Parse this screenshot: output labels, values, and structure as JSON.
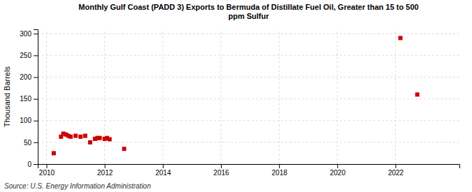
{
  "chart_data": {
    "type": "scatter",
    "title": "Monthly Gulf Coast (PADD 3) Exports to Bermuda of Distillate Fuel Oil, Greater than 15 to 500\nppm Sulfur",
    "ylabel": "Thousand Barrels",
    "annotations": [
      "Source: U.S. Energy Information Administration"
    ],
    "x": [
      2010.25,
      2010.5,
      2010.58,
      2010.67,
      2010.75,
      2010.83,
      2011.0,
      2011.17,
      2011.33,
      2011.5,
      2011.67,
      2011.75,
      2011.83,
      2012.0,
      2012.08,
      2012.17,
      2012.67,
      2022.17,
      2022.75
    ],
    "values": [
      25,
      63,
      70,
      68,
      65,
      63,
      65,
      63,
      65,
      50,
      58,
      60,
      60,
      58,
      60,
      57,
      35,
      290,
      160
    ],
    "color": "#cc0000",
    "marker": "square",
    "xlim": [
      2009.7,
      2024.2
    ],
    "xticks": [
      2010,
      2012,
      2014,
      2016,
      2018,
      2020,
      2022
    ],
    "ylim": [
      0,
      310
    ],
    "yticks": [
      0,
      50,
      100,
      150,
      200,
      250,
      300
    ],
    "grid": true
  }
}
